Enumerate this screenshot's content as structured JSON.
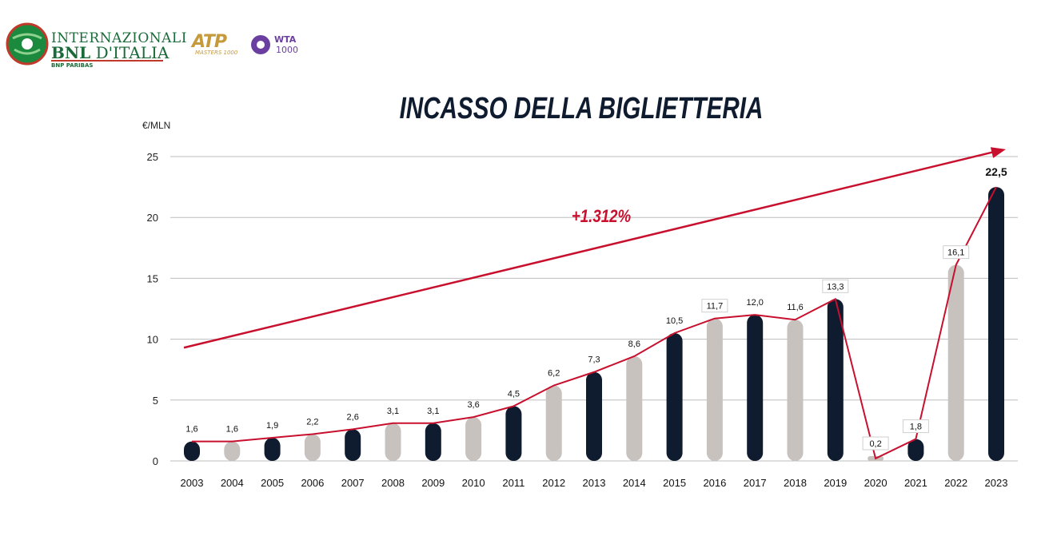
{
  "header": {
    "brand_line1": "INTERNAZIONALI",
    "brand_line2_a": "BNL",
    "brand_line2_b": " D'ITALIA",
    "brand_sub": "BNP PARIBAS",
    "atp_text": "ATP",
    "atp_sub": "MASTERS 1000",
    "wta_text": "WTA",
    "wta_sub": "1000"
  },
  "colors": {
    "dark": "#0f1b2e",
    "grey": "#c8c2bf",
    "red": "#c8102e",
    "brand_green": "#1b6b3a"
  },
  "chart_data": {
    "type": "bar",
    "title": "INCASSO DELLA BIGLIETTERIA",
    "ylabel": "€/MLN",
    "ylim": [
      0,
      25
    ],
    "yticks": [
      "0",
      "5",
      "10",
      "15",
      "20",
      "25"
    ],
    "grid": true,
    "categories": [
      "2003",
      "2004",
      "2005",
      "2006",
      "2007",
      "2008",
      "2009",
      "2010",
      "2011",
      "2012",
      "2013",
      "2014",
      "2015",
      "2016",
      "2017",
      "2018",
      "2019",
      "2020",
      "2021",
      "2022",
      "2023"
    ],
    "values": [
      1.6,
      1.6,
      1.9,
      2.2,
      2.6,
      3.1,
      3.1,
      3.6,
      4.5,
      6.2,
      7.3,
      8.6,
      10.5,
      11.7,
      12.0,
      11.6,
      13.3,
      0.2,
      1.8,
      16.1,
      22.5
    ],
    "value_labels": [
      "1,6",
      "1,6",
      "1,9",
      "2,2",
      "2,6",
      "3,1",
      "3,1",
      "3,6",
      "4,5",
      "6,2",
      "7,3",
      "8,6",
      "10,5",
      "11,7",
      "12,0",
      "11,6",
      "13,3",
      "0,2",
      "1,8",
      "16,1",
      "22,5"
    ],
    "bar_colors": [
      "dark",
      "grey",
      "dark",
      "grey",
      "dark",
      "grey",
      "dark",
      "grey",
      "dark",
      "grey",
      "dark",
      "grey",
      "dark",
      "grey",
      "dark",
      "grey",
      "dark",
      "grey",
      "dark",
      "grey",
      "dark"
    ],
    "boxed_labels": [
      "2016",
      "2019",
      "2020",
      "2021",
      "2022"
    ],
    "highlight_label": "2023",
    "annotation": "+1.312%",
    "trend_arrow": {
      "from": 9.3,
      "to": 25.6
    }
  }
}
